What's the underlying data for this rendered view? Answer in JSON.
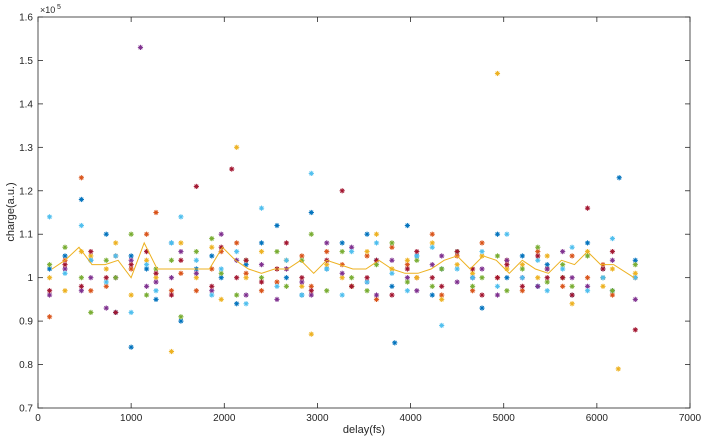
{
  "chart_data": {
    "type": "scatter",
    "title": "",
    "xlabel": "delay(fs)",
    "ylabel": "charge(a.u.)",
    "y_exponent_label": "×10",
    "y_exponent": "5",
    "xlim": [
      0,
      7000
    ],
    "ylim": [
      0.7,
      1.6
    ],
    "x_ticks": [
      0,
      1000,
      2000,
      3000,
      4000,
      5000,
      6000,
      7000
    ],
    "y_ticks": [
      0.7,
      0.8,
      0.9,
      1.0,
      1.1,
      1.2,
      1.3,
      1.4,
      1.5,
      1.6
    ],
    "x_tick_labels": [
      "0",
      "1000",
      "2000",
      "3000",
      "4000",
      "5000",
      "6000",
      "7000"
    ],
    "y_tick_labels": [
      "0.7",
      "0.8",
      "0.9",
      "1",
      "1.1",
      "1.2",
      "1.3",
      "1.4",
      "1.5",
      "1.6"
    ],
    "grid": false,
    "legend": "none",
    "marker": "asterisk",
    "colors": [
      "#0072BD",
      "#D95319",
      "#EDB120",
      "#7E2F8E",
      "#77AC30",
      "#4DBEEE",
      "#A2142F"
    ],
    "series": [
      {
        "color": "#0072BD",
        "values": [
          1.02,
          1.05,
          1.18,
          1.04,
          1.1,
          0.92,
          1.05,
          1.02,
          0.95,
          1.08,
          0.9,
          1.02,
          1.05,
          1.0,
          0.94,
          1.03,
          1.08,
          1.12,
          1.0,
          0.96,
          1.15,
          1.02,
          1.08,
          0.98,
          1.1,
          1.04,
          0.98,
          1.12,
          1.05,
          0.96,
          1.02,
          1.06,
          1.0,
          0.93,
          1.1,
          1.0,
          1.05,
          0.98,
          1.03,
          1.0,
          0.96,
          1.08,
          1.02,
          0.97,
          1.04
        ]
      },
      {
        "color": "#D95319",
        "values": [
          0.91,
          1.04,
          1.23,
          0.97,
          0.98,
          1.05,
          1.02,
          1.1,
          1.15,
          0.97,
          1.01,
          0.97,
          1.02,
          1.06,
          1.08,
          1.01,
          0.97,
          0.99,
          1.02,
          1.05,
          0.98,
          1.06,
          1.03,
          0.98,
          1.05,
          0.95,
          1.07,
          1.03,
          1.0,
          1.1,
          0.96,
          1.05,
          0.97,
          1.08,
          1.0,
          1.04,
          0.97,
          1.06,
          1.02,
          0.98,
          1.05,
          1.0,
          1.03,
          0.96,
          1.0
        ]
      },
      {
        "color": "#EDB120",
        "values": [
          1.0,
          0.97,
          1.06,
          1.05,
          1.02,
          1.08,
          0.96,
          1.04,
          1.0,
          0.83,
          1.08,
          1.0,
          1.07,
          0.95,
          1.3,
          1.0,
          1.06,
          1.02,
          1.04,
          0.98,
          0.87,
          1.03,
          1.0,
          0.98,
          1.06,
          1.1,
          1.02,
          1.04,
          1.0,
          1.08,
          0.95,
          1.03,
          1.01,
          1.05,
          1.47,
          1.02,
          1.03,
          1.0,
          1.05,
          1.0,
          0.94,
          1.06,
          0.98,
          1.02,
          1.01
        ]
      },
      {
        "color": "#7E2F8E",
        "values": [
          0.96,
          1.02,
          0.97,
          1.0,
          0.93,
          1.0,
          1.04,
          0.98,
          0.99,
          1.0,
          1.06,
          1.01,
          0.97,
          1.1,
          1.04,
          0.96,
          1.03,
          0.95,
          1.02,
          0.99,
          0.96,
          1.08,
          1.01,
          1.07,
          0.99,
          0.96,
          1.04,
          1.0,
          0.97,
          1.03,
          1.05,
          0.99,
          1.0,
          1.02,
          0.96,
          1.04,
          1.0,
          0.98,
          1.02,
          1.06,
          1.0,
          0.98,
          1.0,
          1.04,
          0.95
        ]
      },
      {
        "color": "#77AC30",
        "values": [
          1.03,
          1.07,
          1.0,
          0.92,
          1.04,
          1.0,
          1.1,
          0.96,
          1.02,
          1.04,
          0.91,
          1.06,
          1.09,
          1.01,
          0.96,
          1.04,
          1.0,
          1.06,
          0.98,
          1.04,
          1.1,
          0.97,
          1.06,
          1.0,
          0.97,
          1.03,
          1.08,
          0.99,
          1.04,
          0.98,
          1.02,
          1.06,
          0.98,
          1.0,
          1.05,
          0.97,
          1.02,
          1.07,
          0.99,
          1.03,
          0.98,
          1.05,
          1.0,
          0.97,
          1.03
        ]
      },
      {
        "color": "#4DBEEE",
        "values": [
          1.14,
          1.01,
          1.12,
          1.04,
          0.99,
          1.05,
          0.92,
          1.03,
          0.97,
          1.08,
          1.14,
          1.04,
          0.96,
          1.02,
          1.06,
          0.94,
          1.16,
          0.98,
          1.04,
          0.96,
          1.24,
          1.02,
          0.96,
          1.06,
          0.99,
          1.08,
          1.01,
          0.97,
          1.05,
          1.07,
          0.89,
          1.02,
          1.0,
          1.06,
          0.98,
          1.1,
          1.0,
          1.04,
          0.97,
          1.02,
          1.07,
          0.97,
          1.0,
          1.09,
          1.0
        ]
      },
      {
        "color": "#A2142F",
        "values": [
          0.97,
          1.03,
          0.98,
          1.06,
          1.0,
          0.92,
          1.03,
          1.06,
          1.01,
          0.96,
          1.04,
          1.21,
          0.98,
          1.07,
          1.0,
          1.04,
          0.99,
          1.02,
          1.08,
          1.0,
          0.97,
          1.04,
          1.2,
          0.98,
          1.0,
          1.04,
          0.96,
          1.02,
          1.06,
          1.0,
          0.98,
          1.06,
          1.02,
          0.96,
          1.0,
          1.03,
          0.98,
          1.05,
          1.0,
          1.0,
          0.96,
          1.16,
          1.02,
          1.06,
          0.88
        ]
      }
    ],
    "extra_points": [
      {
        "x": 1100,
        "y": 1.53,
        "color": "#7E2F8E"
      },
      {
        "x": 2080,
        "y": 1.25,
        "color": "#A2142F"
      },
      {
        "x": 1000,
        "y": 0.84,
        "color": "#0072BD"
      },
      {
        "x": 3830,
        "y": 0.85,
        "color": "#0072BD"
      },
      {
        "x": 6230,
        "y": 0.79,
        "color": "#EDB120"
      },
      {
        "x": 6240,
        "y": 1.23,
        "color": "#0072BD"
      }
    ],
    "x": [
      150,
      290,
      440,
      580,
      720,
      860,
      1000,
      1140,
      1280,
      1420,
      1560,
      1700,
      1840,
      1980,
      2120,
      2260,
      2400,
      2540,
      2680,
      2820,
      2960,
      3100,
      3240,
      3380,
      3520,
      3660,
      3800,
      3940,
      4080,
      4220,
      4360,
      4500,
      4640,
      4780,
      4920,
      5060,
      5200,
      5340,
      5480,
      5620,
      5760,
      5900,
      6040,
      6180,
      6400
    ],
    "mean_line": {
      "color": "#EDB120",
      "x": [
        150,
        290,
        440,
        580,
        720,
        860,
        1000,
        1140,
        1280,
        1420,
        1560,
        1700,
        1840,
        1980,
        2120,
        2260,
        2400,
        2540,
        2680,
        2820,
        2960,
        3100,
        3240,
        3380,
        3520,
        3660,
        3800,
        3940,
        4080,
        4220,
        4360,
        4500,
        4640,
        4780,
        4920,
        5060,
        5200,
        5340,
        5480,
        5620,
        5760,
        5900,
        6040,
        6180,
        6400
      ],
      "values": [
        1.02,
        1.04,
        1.07,
        1.03,
        1.03,
        1.04,
        1.0,
        1.08,
        1.02,
        1.02,
        1.02,
        1.02,
        1.02,
        1.07,
        1.04,
        1.02,
        1.01,
        1.02,
        1.02,
        1.04,
        1.01,
        1.04,
        1.03,
        1.02,
        1.02,
        1.04,
        1.02,
        1.01,
        1.01,
        1.02,
        1.04,
        1.05,
        1.02,
        1.05,
        1.04,
        1.01,
        1.04,
        1.02,
        1.01,
        1.04,
        1.03,
        1.06,
        1.03,
        1.03,
        1.0
      ]
    }
  }
}
